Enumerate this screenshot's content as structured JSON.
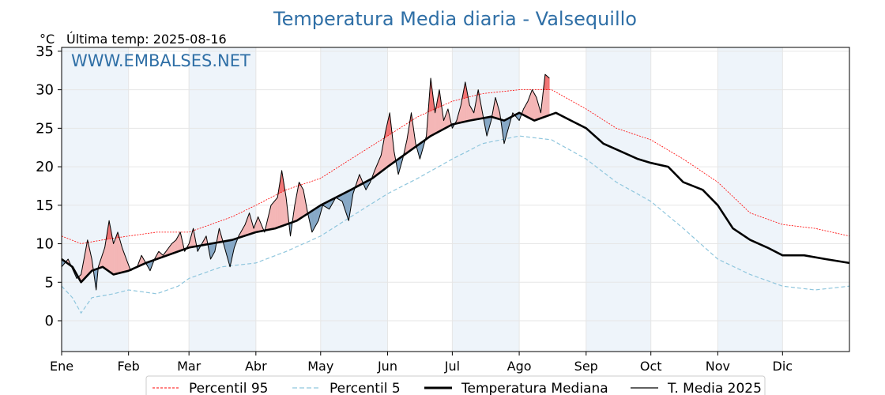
{
  "header": {
    "title": "Temperatura Media diaria - Valsequillo",
    "unit": "°C",
    "last_temp": "Última temp: 2025-08-16",
    "watermark": "WWW.EMBALSES.NET"
  },
  "chart_data": {
    "type": "line",
    "title": "Temperatura Media diaria - Valsequillo",
    "ylabel": "°C",
    "ylim": [
      -4,
      35.5
    ],
    "xlim": [
      1,
      366
    ],
    "yticks": [
      0,
      5,
      10,
      15,
      20,
      25,
      30,
      35
    ],
    "months": [
      {
        "label": "Ene",
        "day": 1
      },
      {
        "label": "Feb",
        "day": 32
      },
      {
        "label": "Mar",
        "day": 60
      },
      {
        "label": "Abr",
        "day": 91
      },
      {
        "label": "May",
        "day": 121
      },
      {
        "label": "Jun",
        "day": 152
      },
      {
        "label": "Jul",
        "day": 182
      },
      {
        "label": "Ago",
        "day": 213
      },
      {
        "label": "Sep",
        "day": 244
      },
      {
        "label": "Oct",
        "day": 274
      },
      {
        "label": "Nov",
        "day": 305
      },
      {
        "label": "Dic",
        "day": 335
      }
    ],
    "grid": true,
    "legend_position": "bottom",
    "colors": {
      "p95": "#ff0000",
      "p5": "#8fc6dd",
      "median": "#000000",
      "current": "#000000",
      "above_fill": "#f4b6b6",
      "above_p95_fill": "#f07070",
      "below_fill": "#86a8c6",
      "shade": "#eef4fa"
    },
    "series": [
      {
        "name": "Percentil 95",
        "key": "p95",
        "points": [
          [
            1,
            11
          ],
          [
            10,
            10
          ],
          [
            20,
            10.5
          ],
          [
            32,
            11
          ],
          [
            45,
            11.5
          ],
          [
            60,
            11.5
          ],
          [
            70,
            12.5
          ],
          [
            80,
            13.5
          ],
          [
            91,
            15
          ],
          [
            105,
            17
          ],
          [
            121,
            18.5
          ],
          [
            135,
            21
          ],
          [
            152,
            24
          ],
          [
            166,
            26.5
          ],
          [
            182,
            28.5
          ],
          [
            196,
            29.5
          ],
          [
            213,
            30
          ],
          [
            228,
            30
          ],
          [
            244,
            27.5
          ],
          [
            258,
            25
          ],
          [
            274,
            23.5
          ],
          [
            289,
            21
          ],
          [
            305,
            18
          ],
          [
            320,
            14
          ],
          [
            335,
            12.5
          ],
          [
            350,
            12
          ],
          [
            366,
            11
          ]
        ]
      },
      {
        "name": "Percentil 5",
        "key": "p5",
        "points": [
          [
            1,
            4.5
          ],
          [
            6,
            3
          ],
          [
            10,
            1
          ],
          [
            15,
            3
          ],
          [
            25,
            3.5
          ],
          [
            32,
            4
          ],
          [
            45,
            3.5
          ],
          [
            55,
            4.5
          ],
          [
            60,
            5.5
          ],
          [
            75,
            7
          ],
          [
            91,
            7.5
          ],
          [
            105,
            9
          ],
          [
            121,
            11
          ],
          [
            135,
            13.5
          ],
          [
            152,
            16.5
          ],
          [
            166,
            18.5
          ],
          [
            182,
            21
          ],
          [
            196,
            23
          ],
          [
            213,
            24
          ],
          [
            228,
            23.5
          ],
          [
            244,
            21
          ],
          [
            258,
            18
          ],
          [
            274,
            15.5
          ],
          [
            289,
            12
          ],
          [
            305,
            8
          ],
          [
            320,
            6
          ],
          [
            335,
            4.5
          ],
          [
            350,
            4
          ],
          [
            366,
            4.5
          ]
        ]
      },
      {
        "name": "Temperatura Mediana",
        "key": "median",
        "points": [
          [
            1,
            8
          ],
          [
            6,
            7
          ],
          [
            10,
            5
          ],
          [
            15,
            6.5
          ],
          [
            20,
            7
          ],
          [
            25,
            6
          ],
          [
            32,
            6.5
          ],
          [
            40,
            7.5
          ],
          [
            50,
            8.5
          ],
          [
            60,
            9.5
          ],
          [
            70,
            10
          ],
          [
            80,
            10.5
          ],
          [
            91,
            11.5
          ],
          [
            100,
            12
          ],
          [
            110,
            13
          ],
          [
            121,
            15
          ],
          [
            135,
            17
          ],
          [
            145,
            18.5
          ],
          [
            152,
            20
          ],
          [
            162,
            22
          ],
          [
            172,
            24
          ],
          [
            182,
            25.5
          ],
          [
            190,
            26
          ],
          [
            200,
            26.5
          ],
          [
            206,
            26
          ],
          [
            213,
            27
          ],
          [
            220,
            26
          ],
          [
            230,
            27
          ],
          [
            237,
            26
          ],
          [
            244,
            25
          ],
          [
            252,
            23
          ],
          [
            260,
            22
          ],
          [
            268,
            21
          ],
          [
            274,
            20.5
          ],
          [
            282,
            20
          ],
          [
            289,
            18
          ],
          [
            298,
            17
          ],
          [
            305,
            15
          ],
          [
            312,
            12
          ],
          [
            320,
            10.5
          ],
          [
            328,
            9.5
          ],
          [
            335,
            8.5
          ],
          [
            345,
            8.5
          ],
          [
            355,
            8
          ],
          [
            366,
            7.5
          ]
        ]
      },
      {
        "name": "T. Media 2025",
        "key": "current",
        "points": [
          [
            1,
            7
          ],
          [
            4,
            8
          ],
          [
            8,
            5.5
          ],
          [
            10,
            6
          ],
          [
            13,
            10.5
          ],
          [
            15,
            8
          ],
          [
            17,
            4
          ],
          [
            18,
            7
          ],
          [
            21,
            9.5
          ],
          [
            23,
            13
          ],
          [
            25,
            10
          ],
          [
            27,
            11.5
          ],
          [
            29,
            9.5
          ],
          [
            31,
            8
          ],
          [
            33,
            6.5
          ],
          [
            36,
            7
          ],
          [
            38,
            8.5
          ],
          [
            40,
            7.5
          ],
          [
            42,
            6.5
          ],
          [
            44,
            8
          ],
          [
            46,
            9
          ],
          [
            48,
            8.5
          ],
          [
            52,
            10
          ],
          [
            54,
            10.5
          ],
          [
            56,
            11.5
          ],
          [
            58,
            9
          ],
          [
            60,
            10
          ],
          [
            62,
            12
          ],
          [
            64,
            9
          ],
          [
            66,
            10
          ],
          [
            68,
            11
          ],
          [
            70,
            8
          ],
          [
            72,
            9
          ],
          [
            74,
            12
          ],
          [
            76,
            10
          ],
          [
            79,
            7
          ],
          [
            81,
            9.5
          ],
          [
            83,
            11
          ],
          [
            86,
            12.5
          ],
          [
            88,
            14
          ],
          [
            90,
            12
          ],
          [
            92,
            13.5
          ],
          [
            95,
            11.5
          ],
          [
            98,
            15
          ],
          [
            101,
            16
          ],
          [
            103,
            19.5
          ],
          [
            105,
            16
          ],
          [
            107,
            11
          ],
          [
            109,
            15
          ],
          [
            111,
            18
          ],
          [
            113,
            17
          ],
          [
            115,
            14
          ],
          [
            117,
            11.5
          ],
          [
            120,
            13
          ],
          [
            122,
            15
          ],
          [
            125,
            14.5
          ],
          [
            128,
            16
          ],
          [
            131,
            15.5
          ],
          [
            134,
            13
          ],
          [
            136,
            16.5
          ],
          [
            139,
            19
          ],
          [
            142,
            17
          ],
          [
            144,
            18
          ],
          [
            146,
            19.5
          ],
          [
            149,
            21.5
          ],
          [
            151,
            24.5
          ],
          [
            153,
            27
          ],
          [
            155,
            22
          ],
          [
            157,
            19
          ],
          [
            159,
            21
          ],
          [
            161,
            23.5
          ],
          [
            163,
            27
          ],
          [
            165,
            23
          ],
          [
            167,
            21
          ],
          [
            170,
            24
          ],
          [
            172,
            31.5
          ],
          [
            174,
            27
          ],
          [
            176,
            30
          ],
          [
            178,
            26
          ],
          [
            180,
            27.5
          ],
          [
            182,
            25
          ],
          [
            184,
            26
          ],
          [
            186,
            28
          ],
          [
            188,
            31
          ],
          [
            190,
            28
          ],
          [
            192,
            27
          ],
          [
            194,
            30
          ],
          [
            196,
            27
          ],
          [
            198,
            24
          ],
          [
            200,
            26
          ],
          [
            202,
            29
          ],
          [
            204,
            27
          ],
          [
            206,
            23
          ],
          [
            208,
            25
          ],
          [
            210,
            27
          ],
          [
            213,
            26
          ],
          [
            215,
            27.5
          ],
          [
            217,
            28.5
          ],
          [
            219,
            30
          ],
          [
            221,
            29
          ],
          [
            223,
            27
          ],
          [
            225,
            32
          ],
          [
            227,
            31.5
          ]
        ]
      }
    ],
    "legend": [
      "Percentil 95",
      "Percentil 5",
      "Temperatura Mediana",
      "T. Media 2025"
    ]
  }
}
